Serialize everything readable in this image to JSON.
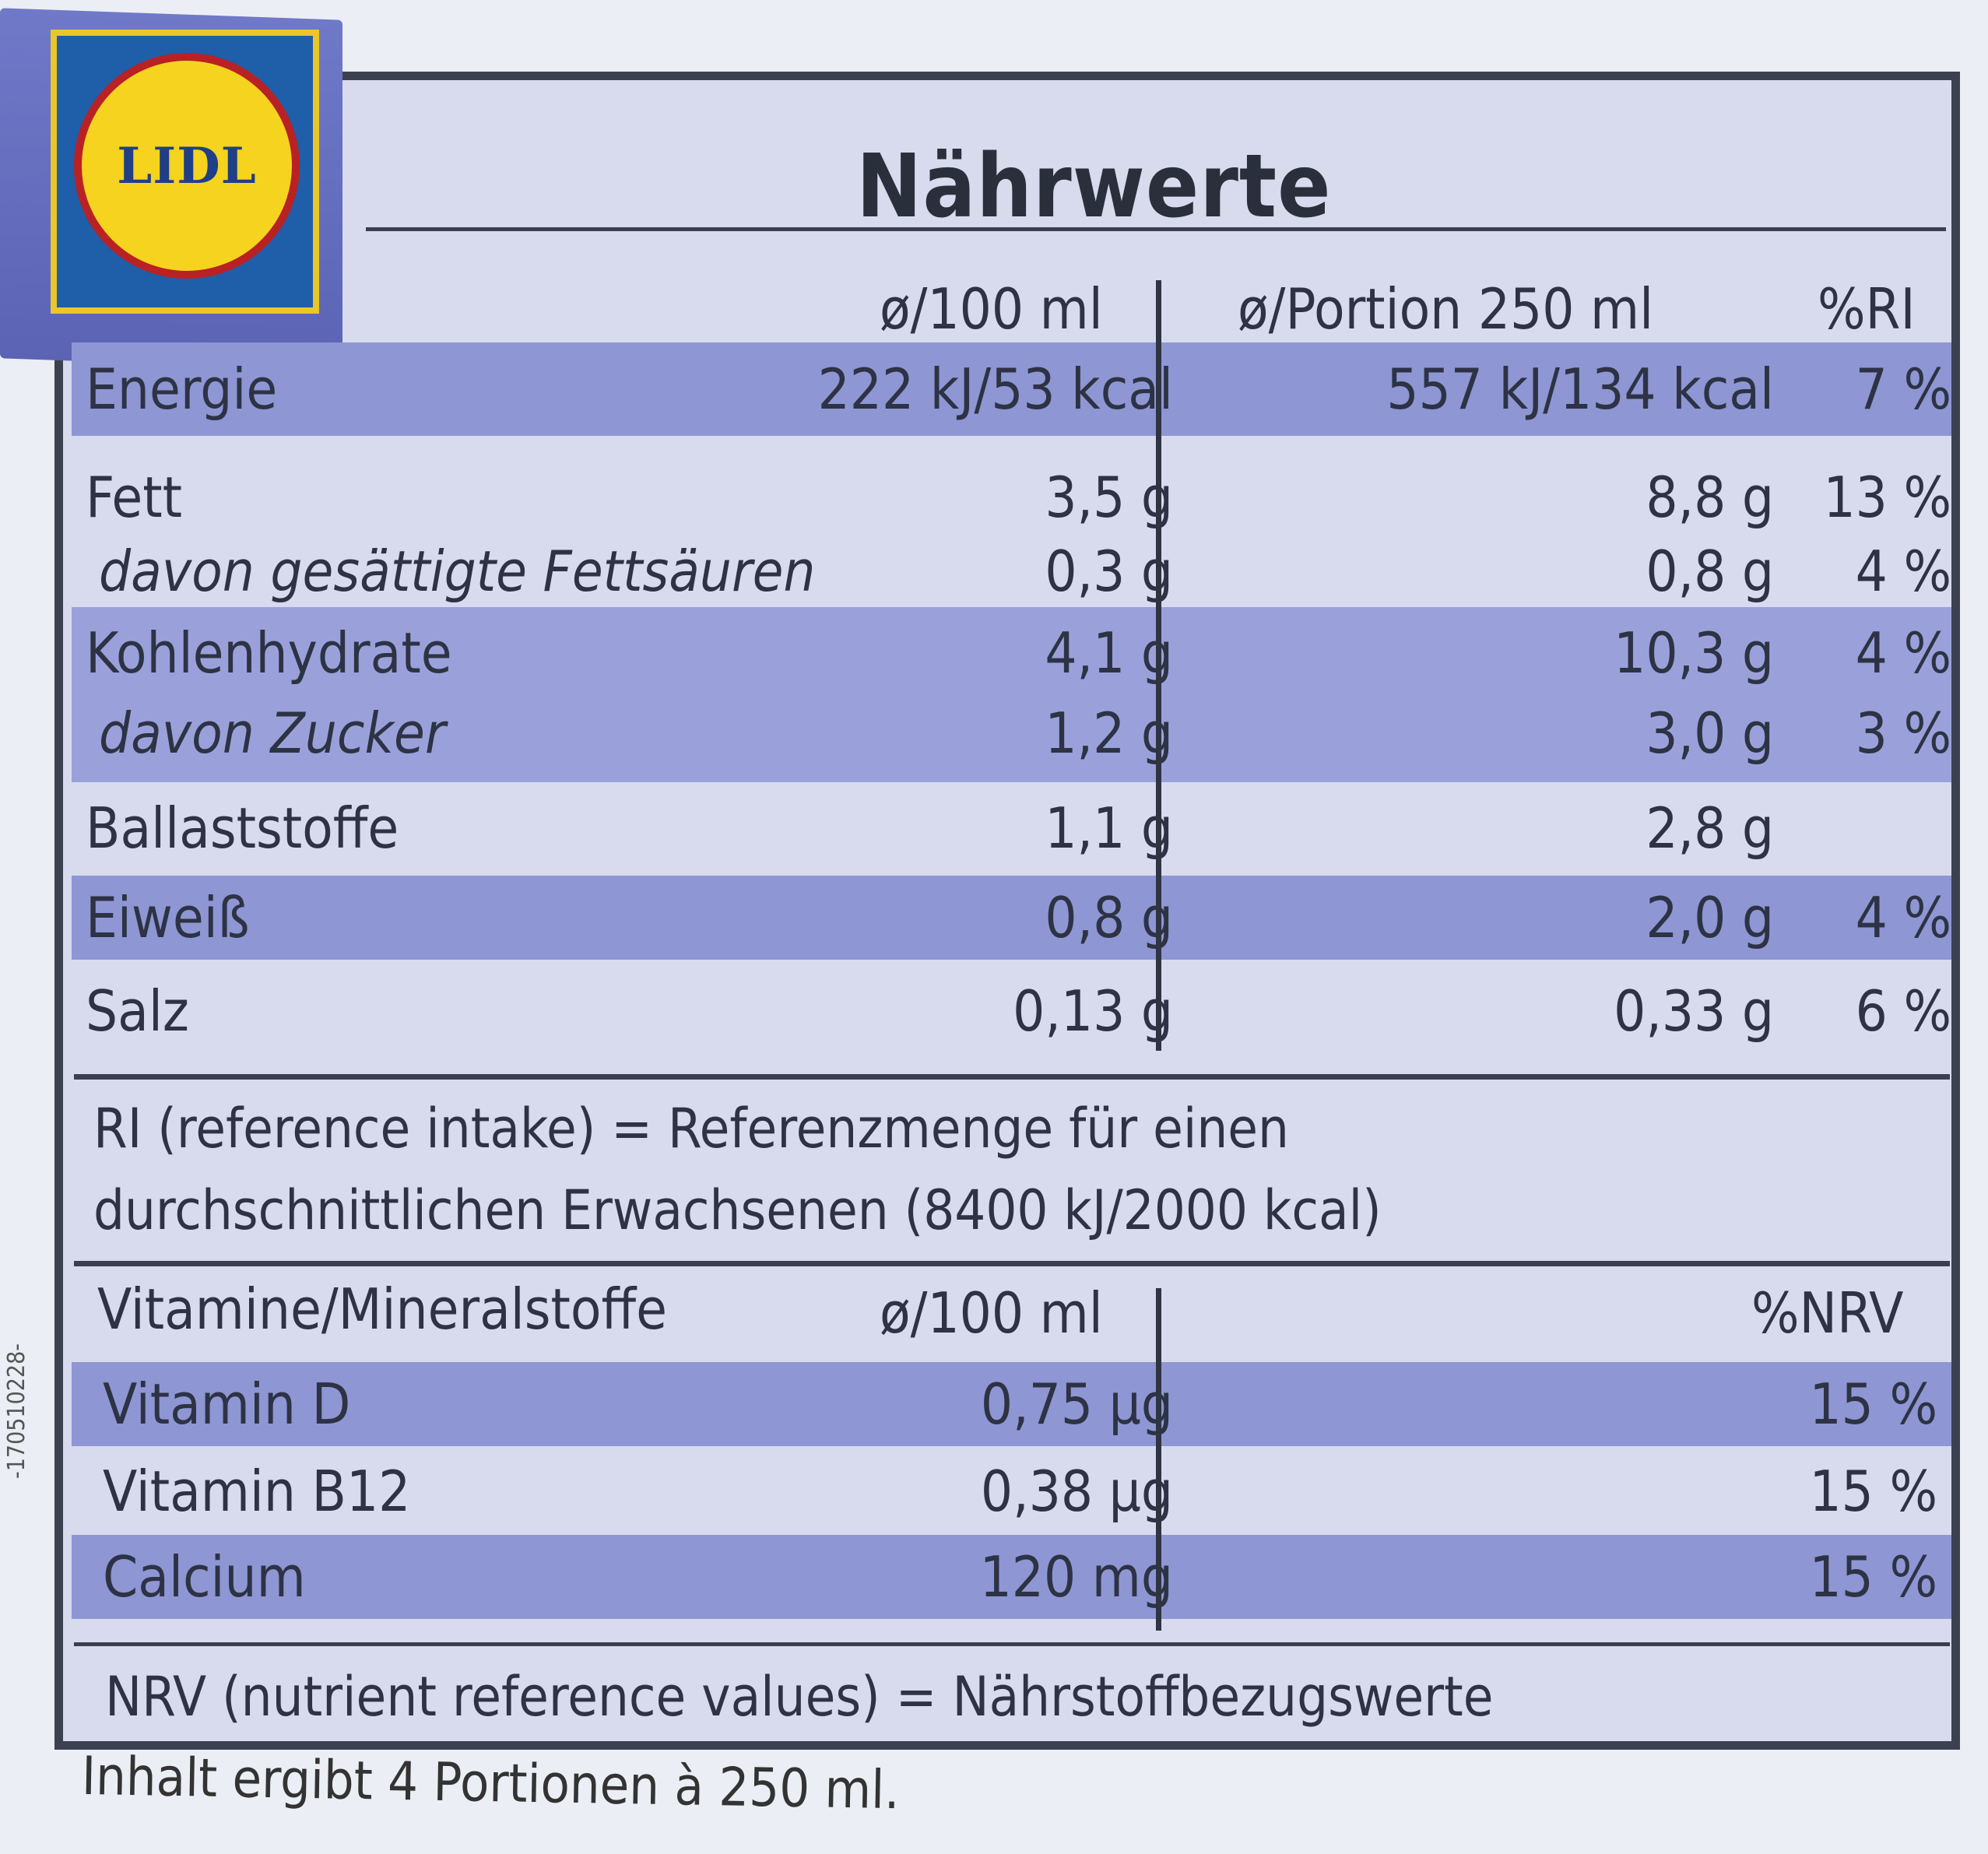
{
  "brand": "LIDL",
  "title": "Nährwerte",
  "headers": {
    "per100": "ø/100 ml",
    "portion": "ø/Portion 250 ml",
    "ri": "%RI"
  },
  "rows": [
    {
      "name": "Energie",
      "per100": "222 kJ/53 kcal",
      "portion": "557 kJ/134 kcal",
      "ri": "7 %"
    },
    {
      "name": "Fett",
      "per100": "3,5 g",
      "portion": "8,8 g",
      "ri": "13 %"
    },
    {
      "name": "davon gesättigte Fettsäuren",
      "per100": "0,3 g",
      "portion": "0,8 g",
      "ri": "4 %"
    },
    {
      "name": "Kohlenhydrate",
      "per100": "4,1 g",
      "portion": "10,3 g",
      "ri": "4 %"
    },
    {
      "name": "davon Zucker",
      "per100": "1,2 g",
      "portion": "3,0 g",
      "ri": "3 %"
    },
    {
      "name": "Ballaststoffe",
      "per100": "1,1 g",
      "portion": "2,8 g",
      "ri": ""
    },
    {
      "name": "Eiweiß",
      "per100": "0,8 g",
      "portion": "2,0 g",
      "ri": "4 %"
    },
    {
      "name": "Salz",
      "per100": "0,13 g",
      "portion": "0,33 g",
      "ri": "6 %"
    }
  ],
  "ri_note": [
    "RI (reference intake) = Referenzmenge für einen",
    "durchschnittlichen Erwachsenen (8400 kJ/2000 kcal)"
  ],
  "vitamins_headers": {
    "name": "Vitamine/Mineralstoffe",
    "per100": "ø/100 ml",
    "nrv": "%NRV"
  },
  "vitamins": [
    {
      "name": "Vitamin D",
      "per100": "0,75 µg",
      "nrv": "15 %"
    },
    {
      "name": "Vitamin B12",
      "per100": "0,38 µg",
      "nrv": "15 %"
    },
    {
      "name": "Calcium",
      "per100": "120 mg",
      "nrv": "15 %"
    }
  ],
  "nrv_note": "NRV (nutrient reference values) = Nährstoffbezugswerte",
  "footer": "Inhalt ergibt 4 Portionen à 250 ml.",
  "side_code": "-170510228-"
}
